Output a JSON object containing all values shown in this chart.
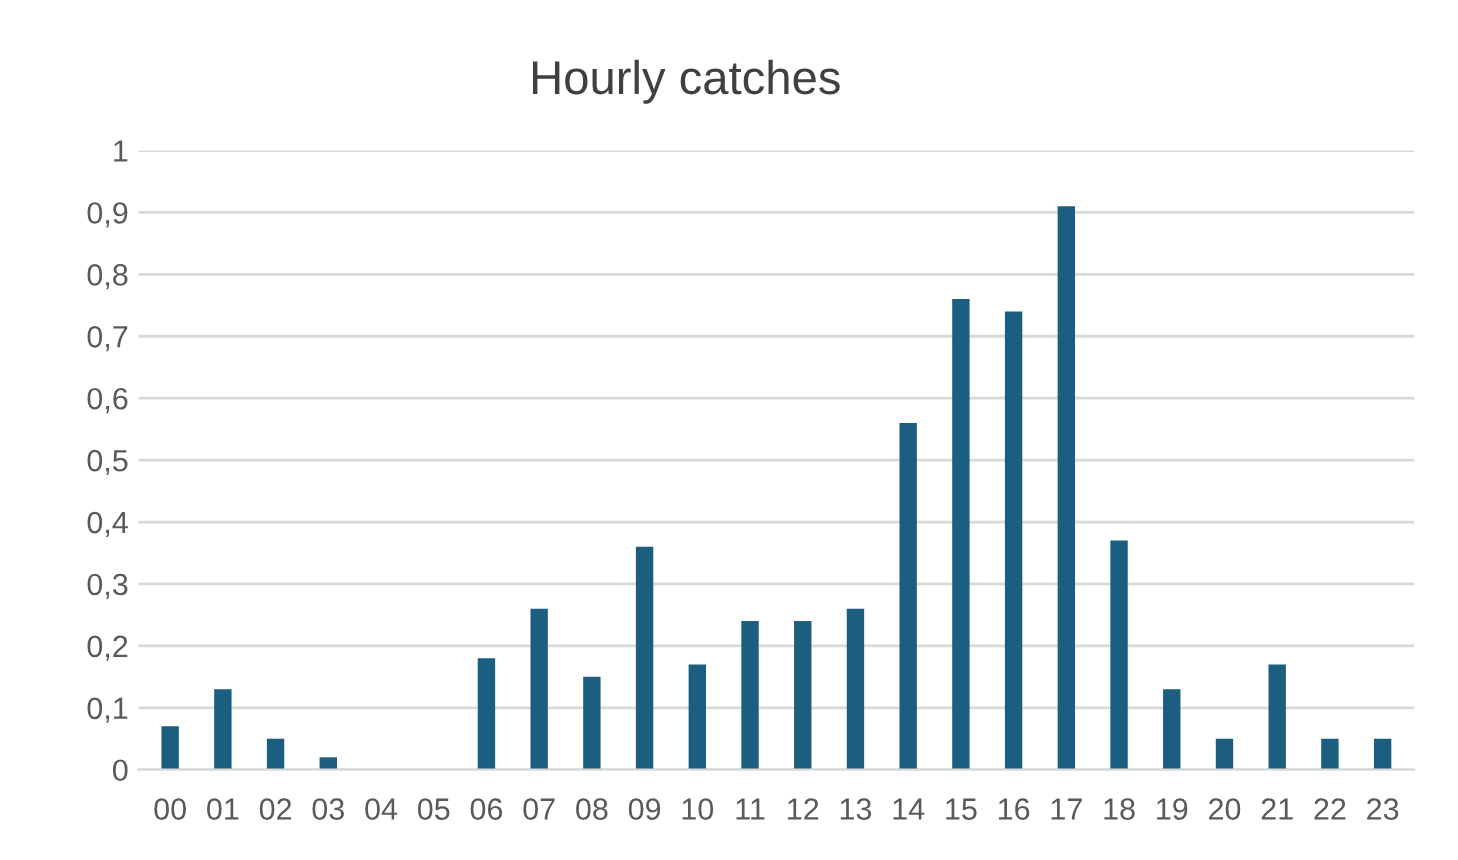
{
  "chart_data": {
    "type": "bar",
    "title": "Hourly catches",
    "categories": [
      "00",
      "01",
      "02",
      "03",
      "04",
      "05",
      "06",
      "07",
      "08",
      "09",
      "10",
      "11",
      "12",
      "13",
      "14",
      "15",
      "16",
      "17",
      "18",
      "19",
      "20",
      "21",
      "22",
      "23"
    ],
    "values": [
      0.07,
      0.13,
      0.05,
      0.02,
      0,
      0,
      0.18,
      0.26,
      0.15,
      0.36,
      0.17,
      0.24,
      0.24,
      0.26,
      0.56,
      0.76,
      0.74,
      0.91,
      0.37,
      0.13,
      0.05,
      0.17,
      0.05,
      0.05
    ],
    "color": "#1b5e80",
    "ylim": [
      0,
      1
    ],
    "yticks": [
      0,
      {
        "value": 0.1,
        "label": "0,1"
      },
      {
        "value": 0.2,
        "label": "0,2"
      },
      {
        "value": 0.3,
        "label": "0,3"
      },
      {
        "value": 0.4,
        "label": "0,4"
      },
      {
        "value": 0.5,
        "label": "0,5"
      },
      {
        "value": 0.6,
        "label": "0,6"
      },
      {
        "value": 0.7,
        "label": "0,7"
      },
      {
        "value": 0.8,
        "label": "0,8"
      },
      {
        "value": 0.9,
        "label": "0,9"
      },
      1
    ],
    "grid": "y"
  }
}
